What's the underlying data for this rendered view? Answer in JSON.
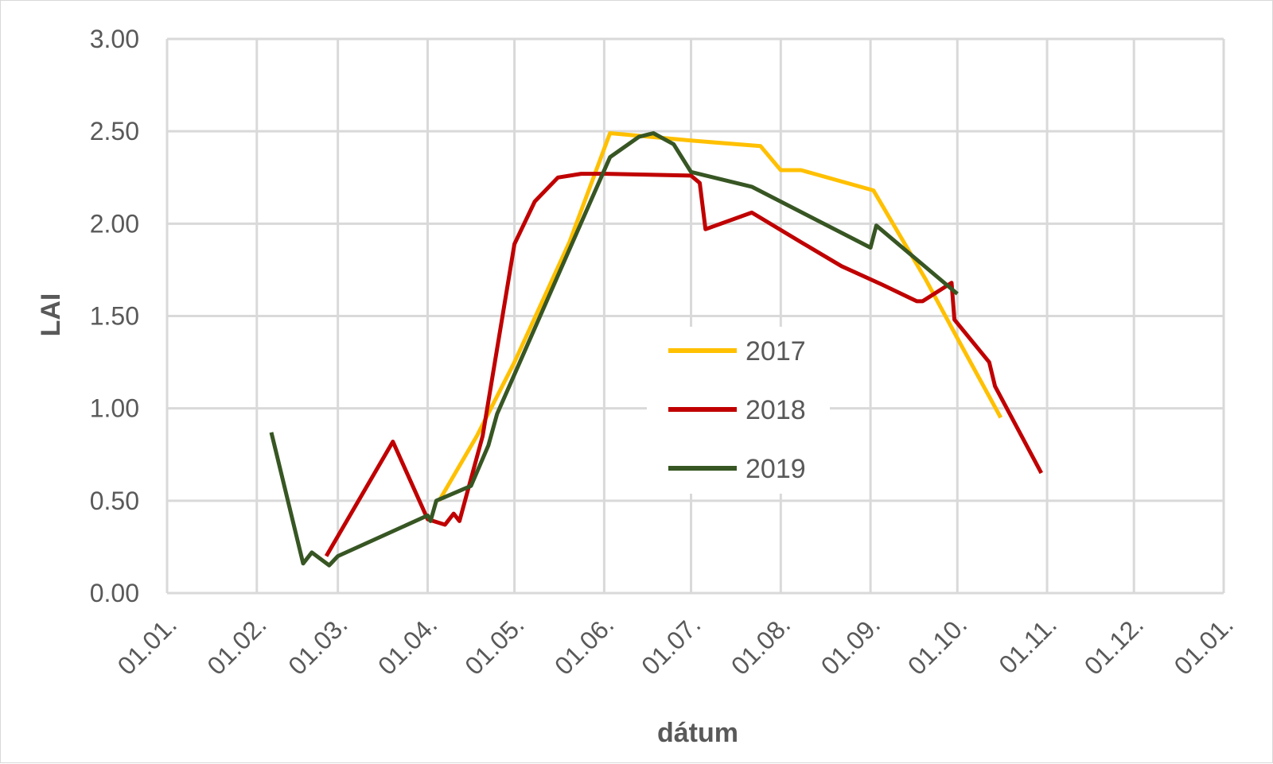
{
  "chart_data": {
    "type": "line",
    "title": "",
    "xlabel": "dátum",
    "ylabel": "LAI",
    "ylim": [
      0,
      3
    ],
    "y_ticks": [
      "0.00",
      "0.50",
      "1.00",
      "1.50",
      "2.00",
      "2.50",
      "3.00"
    ],
    "x_range": [
      "01.01.",
      "01.01."
    ],
    "x_ticks": [
      "01.01.",
      "01.02.",
      "01.03.",
      "01.04.",
      "01.05.",
      "01.06.",
      "01.07.",
      "01.08.",
      "01.09.",
      "01.10.",
      "01.11.",
      "01.12.",
      "01.01."
    ],
    "grid": true,
    "legend_position": "center",
    "series": [
      {
        "name": "2017",
        "color": "#FFC000",
        "points": [
          [
            "05.04.",
            0.5
          ],
          [
            "18.04.",
            0.85
          ],
          [
            "01.05.",
            1.25
          ],
          [
            "20.05.",
            1.9
          ],
          [
            "03.06.",
            2.49
          ],
          [
            "01.07.",
            2.45
          ],
          [
            "25.07.",
            2.42
          ],
          [
            "01.08.",
            2.29
          ],
          [
            "08.08.",
            2.29
          ],
          [
            "02.09.",
            2.18
          ],
          [
            "20.09.",
            1.7
          ],
          [
            "01.10.",
            1.38
          ],
          [
            "16.10.",
            0.95
          ]
        ]
      },
      {
        "name": "2018",
        "color": "#C00000",
        "points": [
          [
            "25.02.",
            0.2
          ],
          [
            "20.03.",
            0.82
          ],
          [
            "01.04.",
            0.4
          ],
          [
            "07.04.",
            0.37
          ],
          [
            "10.04.",
            0.43
          ],
          [
            "12.04.",
            0.39
          ],
          [
            "20.04.",
            0.85
          ],
          [
            "01.05.",
            1.89
          ],
          [
            "08.05.",
            2.12
          ],
          [
            "16.05.",
            2.25
          ],
          [
            "24.05.",
            2.27
          ],
          [
            "01.06.",
            2.27
          ],
          [
            "01.07.",
            2.26
          ],
          [
            "04.07.",
            2.22
          ],
          [
            "06.07.",
            1.97
          ],
          [
            "22.07.",
            2.06
          ],
          [
            "08.08.",
            1.9
          ],
          [
            "22.08.",
            1.77
          ],
          [
            "05.09.",
            1.67
          ],
          [
            "17.09.",
            1.58
          ],
          [
            "19.09.",
            1.58
          ],
          [
            "29.09.",
            1.68
          ],
          [
            "30.09.",
            1.48
          ],
          [
            "12.10.",
            1.25
          ],
          [
            "14.10.",
            1.12
          ],
          [
            "30.10.",
            0.65
          ]
        ]
      },
      {
        "name": "2019",
        "color": "#375623",
        "points": [
          [
            "06.02.",
            0.87
          ],
          [
            "17.02.",
            0.16
          ],
          [
            "20.02.",
            0.22
          ],
          [
            "26.02.",
            0.15
          ],
          [
            "01.03.",
            0.2
          ],
          [
            "01.04.",
            0.42
          ],
          [
            "02.04.",
            0.39
          ],
          [
            "04.04.",
            0.5
          ],
          [
            "16.04.",
            0.58
          ],
          [
            "22.04.",
            0.8
          ],
          [
            "25.04.",
            0.97
          ],
          [
            "03.06.",
            2.36
          ],
          [
            "13.06.",
            2.47
          ],
          [
            "18.06.",
            2.49
          ],
          [
            "25.06.",
            2.43
          ],
          [
            "01.07.",
            2.28
          ],
          [
            "22.07.",
            2.2
          ],
          [
            "01.09.",
            1.87
          ],
          [
            "03.09.",
            1.99
          ],
          [
            "01.10.",
            1.62
          ]
        ]
      }
    ]
  }
}
